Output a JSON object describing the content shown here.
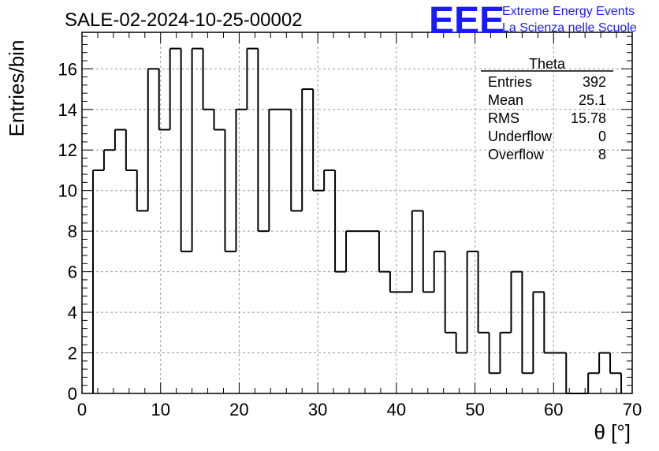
{
  "chart_data": {
    "type": "bar",
    "subtype": "step-histogram",
    "title": "SALE-02-2024-10-25-00002",
    "xlabel": "θ [°]",
    "ylabel": "Entries/bin",
    "xlim": [
      0,
      70
    ],
    "ylim": [
      0,
      17.8
    ],
    "grid": true,
    "x_ticks": [
      0,
      10,
      20,
      30,
      40,
      50,
      60,
      70
    ],
    "y_ticks": [
      0,
      2,
      4,
      6,
      8,
      10,
      12,
      14,
      16
    ],
    "bin_width": 1.4,
    "bin_start": 1.4,
    "values": [
      11,
      12,
      13,
      11,
      9,
      16,
      13,
      17,
      7,
      17,
      14,
      13,
      7,
      14,
      17,
      8,
      14,
      14,
      9,
      15,
      10,
      11,
      6,
      8,
      8,
      8,
      6,
      5,
      5,
      9,
      5,
      7,
      3,
      2,
      7,
      3,
      1,
      3,
      6,
      1,
      5,
      2,
      2,
      0,
      0,
      1,
      2,
      1
    ],
    "stats": {
      "title": "Theta",
      "rows": [
        {
          "label": "Entries",
          "value": "392"
        },
        {
          "label": "Mean",
          "value": "25.1"
        },
        {
          "label": "RMS",
          "value": "15.78"
        },
        {
          "label": "Underflow",
          "value": "0"
        },
        {
          "label": "Overflow",
          "value": "8"
        }
      ]
    }
  },
  "logo": {
    "mark": "EEE",
    "line1": "Extreme Energy Events",
    "line2": "La Scienza nelle Scuole",
    "color": "#1a1aff"
  }
}
